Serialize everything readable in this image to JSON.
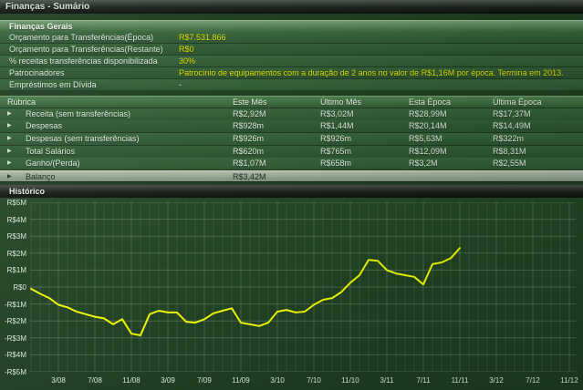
{
  "window": {
    "title": "Finanças - Sumário"
  },
  "general": {
    "header": "Finanças Gerais",
    "rows": [
      {
        "label": "Orçamento para Transferências(Época)",
        "value": "R$7.531.866"
      },
      {
        "label": "Orçamento para Transferências(Restante)",
        "value": "R$0"
      },
      {
        "label": "% receitas transferências disponibilizada",
        "value": "30%"
      },
      {
        "label": "Patrocinadores",
        "value": "Patrocínio de equipamentos com a duração de 2 anos no valor de R$1,16M por época. Termina em 2013."
      },
      {
        "label": "Empréstimos em Dívida",
        "value": "-"
      }
    ]
  },
  "finances_table": {
    "columns": [
      "Rúbrica",
      "Este Mês",
      "Último Mês",
      "Esta Época",
      "Última Época"
    ],
    "rows": [
      {
        "label": "Receita (sem transferências)",
        "values": [
          "R$2,92M",
          "R$3,02M",
          "R$28,99M",
          "R$17,37M"
        ]
      },
      {
        "label": "Despesas",
        "values": [
          "R$928m",
          "R$1,44M",
          "R$20,14M",
          "R$14,49M"
        ]
      },
      {
        "label": "Despesas (sem transferências)",
        "values": [
          "R$926m",
          "R$926m",
          "R$5,63M",
          "R$322m"
        ]
      },
      {
        "label": "Total Salários",
        "values": [
          "R$620m",
          "R$765m",
          "R$12,09M",
          "R$8,31M"
        ]
      },
      {
        "label": "Ganho/(Perda)",
        "values": [
          "R$1,07M",
          "R$658m",
          "R$3,2M",
          "R$2,55M"
        ]
      },
      {
        "label": "Balanço",
        "values": [
          "R$3,42M",
          "",
          "",
          ""
        ],
        "selected": true
      }
    ]
  },
  "history": {
    "header": "Histórico"
  },
  "chart_data": {
    "type": "line",
    "title": "Histórico",
    "xlabel": "",
    "ylabel": "",
    "values_unit": "R$ millions",
    "ylim_millions": [
      -5,
      5
    ],
    "grid": true,
    "legend": "none",
    "y_ticks": [
      "R$5M",
      "R$4M",
      "R$3M",
      "R$2M",
      "R$1M",
      "R$0",
      "-R$1M",
      "-R$2M",
      "-R$3M",
      "-R$4M",
      "-R$5M"
    ],
    "x_ticks": [
      "3/08",
      "7/08",
      "11/08",
      "3/09",
      "7/09",
      "11/09",
      "3/10",
      "7/10",
      "11/10",
      "3/11",
      "7/11",
      "11/11",
      "3/12",
      "7/12",
      "11/12"
    ],
    "x_axis_end": "12/12",
    "x": [
      "12/07",
      "1/08",
      "2/08",
      "3/08",
      "4/08",
      "5/08",
      "6/08",
      "7/08",
      "8/08",
      "9/08",
      "10/08",
      "11/08",
      "12/08",
      "1/09",
      "2/09",
      "3/09",
      "4/09",
      "5/09",
      "6/09",
      "7/09",
      "8/09",
      "9/09",
      "10/09",
      "11/09",
      "12/09",
      "1/10",
      "2/10",
      "3/10",
      "4/10",
      "5/10",
      "6/10",
      "7/10",
      "8/10",
      "9/10",
      "10/10",
      "11/10",
      "12/10",
      "1/11",
      "2/11",
      "3/11",
      "4/11",
      "5/11",
      "6/11",
      "7/11",
      "8/11",
      "9/11",
      "10/11",
      "11/11"
    ],
    "series": [
      {
        "name": "Balanço",
        "color": "#ecf600",
        "values": [
          -0.1,
          -0.4,
          -0.65,
          -1.05,
          -1.2,
          -1.45,
          -1.6,
          -1.75,
          -1.85,
          -2.2,
          -1.9,
          -2.75,
          -2.85,
          -1.6,
          -1.4,
          -1.5,
          -1.5,
          -2.05,
          -2.1,
          -1.9,
          -1.55,
          -1.4,
          -1.25,
          -2.1,
          -2.2,
          -2.3,
          -2.1,
          -1.45,
          -1.35,
          -1.5,
          -1.45,
          -1.05,
          -0.75,
          -0.65,
          -0.3,
          0.25,
          0.7,
          1.6,
          1.55,
          1.0,
          0.8,
          0.7,
          0.6,
          0.15,
          1.35,
          1.45,
          1.7,
          2.3
        ]
      }
    ]
  },
  "colors": {
    "accent_yellow": "#dce000",
    "chart_line": "#ecf600",
    "background_green": "#1f3e21"
  }
}
